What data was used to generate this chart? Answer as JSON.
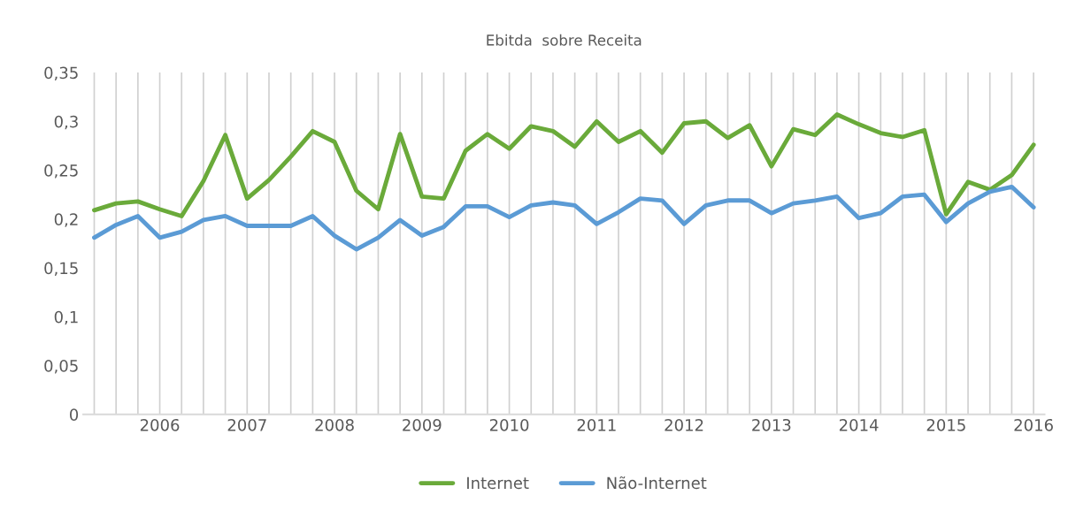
{
  "chart_data": {
    "type": "line",
    "title": "Ebitda  sobre Receita",
    "categories": [
      null,
      null,
      null,
      "2006",
      null,
      null,
      null,
      "2007",
      null,
      null,
      null,
      "2008",
      null,
      null,
      null,
      "2009",
      null,
      null,
      null,
      "2010",
      null,
      null,
      null,
      "2011",
      null,
      null,
      null,
      "2012",
      null,
      null,
      null,
      "2013",
      null,
      null,
      null,
      "2014",
      null,
      null,
      null,
      "2015",
      null,
      null,
      null,
      "2016"
    ],
    "series": [
      {
        "name": "Internet",
        "color": "#6aaa3a",
        "values": [
          0.209,
          0.216,
          0.218,
          0.21,
          0.203,
          0.239,
          0.286,
          0.221,
          0.24,
          0.264,
          0.29,
          0.279,
          0.229,
          0.21,
          0.287,
          0.223,
          0.221,
          0.27,
          0.287,
          0.272,
          0.295,
          0.29,
          0.274,
          0.3,
          0.279,
          0.29,
          0.268,
          0.298,
          0.3,
          0.283,
          0.296,
          0.254,
          0.292,
          0.286,
          0.307,
          0.297,
          0.288,
          0.284,
          0.291,
          0.205,
          0.238,
          0.23,
          0.245,
          0.276
        ]
      },
      {
        "name": "Não-Internet",
        "color": "#5b9bd5",
        "values": [
          0.181,
          0.194,
          0.203,
          0.181,
          0.187,
          0.199,
          0.203,
          0.193,
          0.193,
          0.193,
          0.203,
          0.183,
          0.169,
          0.181,
          0.199,
          0.183,
          0.192,
          0.213,
          0.213,
          0.202,
          0.214,
          0.217,
          0.214,
          0.195,
          0.207,
          0.221,
          0.219,
          0.195,
          0.214,
          0.219,
          0.219,
          0.206,
          0.216,
          0.219,
          0.223,
          0.201,
          0.206,
          0.223,
          0.225,
          0.197,
          0.216,
          0.228,
          0.233,
          0.212
        ]
      }
    ],
    "ylim": [
      0,
      0.35
    ],
    "yticks": [
      0,
      {
        "value": 0.05,
        "label": "0,05"
      },
      {
        "value": 0.1,
        "label": "0,1"
      },
      {
        "value": 0.15,
        "label": "0,15"
      },
      {
        "value": 0.2,
        "label": "0,2"
      },
      {
        "value": 0.25,
        "label": "0,25"
      },
      {
        "value": 0.3,
        "label": "0,3"
      },
      {
        "value": 0.35,
        "label": "0,35"
      }
    ],
    "grid": "x",
    "legend": "bottom",
    "marker": "none",
    "line_style": "solid"
  }
}
